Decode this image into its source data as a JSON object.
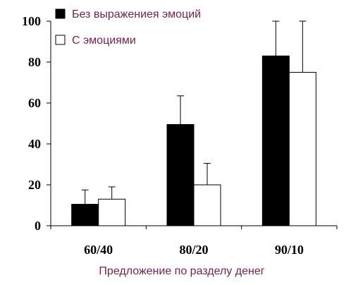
{
  "chart_data": {
    "type": "bar",
    "categories": [
      "60/40",
      "80/20",
      "90/10"
    ],
    "series": [
      {
        "name": "Без выражениея эмоций",
        "values": [
          10.5,
          49.5,
          83
        ],
        "error_upper": [
          17.5,
          63.5,
          100
        ],
        "color": "#000000"
      },
      {
        "name": "С эмоциями",
        "values": [
          13,
          20,
          75
        ],
        "error_upper": [
          19,
          30.5,
          100
        ],
        "color": "#ffffff"
      }
    ],
    "y_ticks": [
      "0",
      "20",
      "40",
      "60",
      "80",
      "100"
    ],
    "ylim": [
      0,
      100
    ],
    "xlabel": "Предложение по разделу денег",
    "ylabel": "",
    "title": "",
    "grid": false,
    "legend_position": "top-left",
    "text_color": "#7a1f4a"
  }
}
